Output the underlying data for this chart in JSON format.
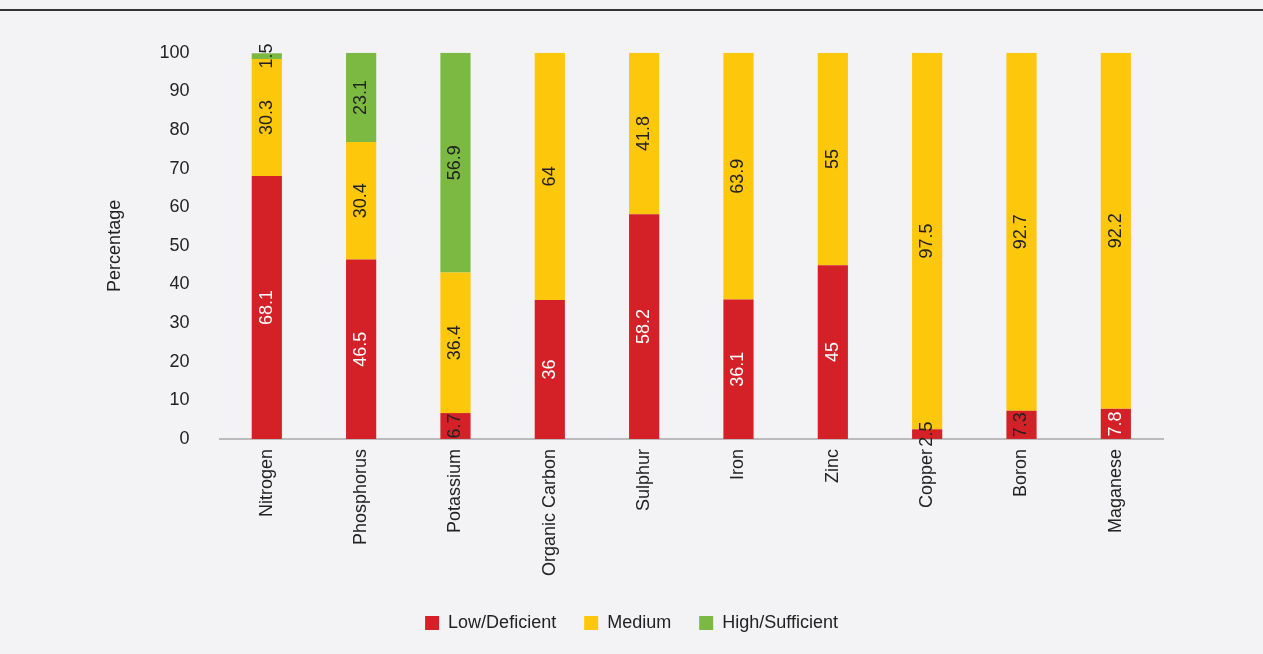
{
  "chart_data": {
    "type": "bar",
    "stacked": true,
    "ylabel": "Percentage",
    "categories": [
      "Nitrogen",
      "Phosphorus",
      "Potassium",
      "Organic Carbon",
      "Sulphur",
      "Iron",
      "Zinc",
      "Copper",
      "Boron",
      "Maganese"
    ],
    "series": [
      {
        "name": "Low/Deficient",
        "color": "#d42027",
        "values": [
          68.1,
          46.5,
          6.7,
          36,
          58.2,
          36.1,
          45,
          2.5,
          7.3,
          7.8
        ]
      },
      {
        "name": "Medium",
        "color": "#fdc70c",
        "values": [
          30.3,
          30.4,
          36.4,
          64,
          41.8,
          63.9,
          55,
          97.5,
          92.7,
          92.2
        ]
      },
      {
        "name": "High/Sufficient",
        "color": "#7cb942",
        "values": [
          1.5,
          23.1,
          56.9,
          null,
          null,
          null,
          null,
          null,
          null,
          null
        ]
      }
    ],
    "ylim": [
      0,
      100
    ],
    "yticks": [
      0,
      10,
      20,
      30,
      40,
      50,
      60,
      70,
      80,
      90,
      100
    ],
    "grid": false,
    "legend": "bottom",
    "data_labels": true
  }
}
